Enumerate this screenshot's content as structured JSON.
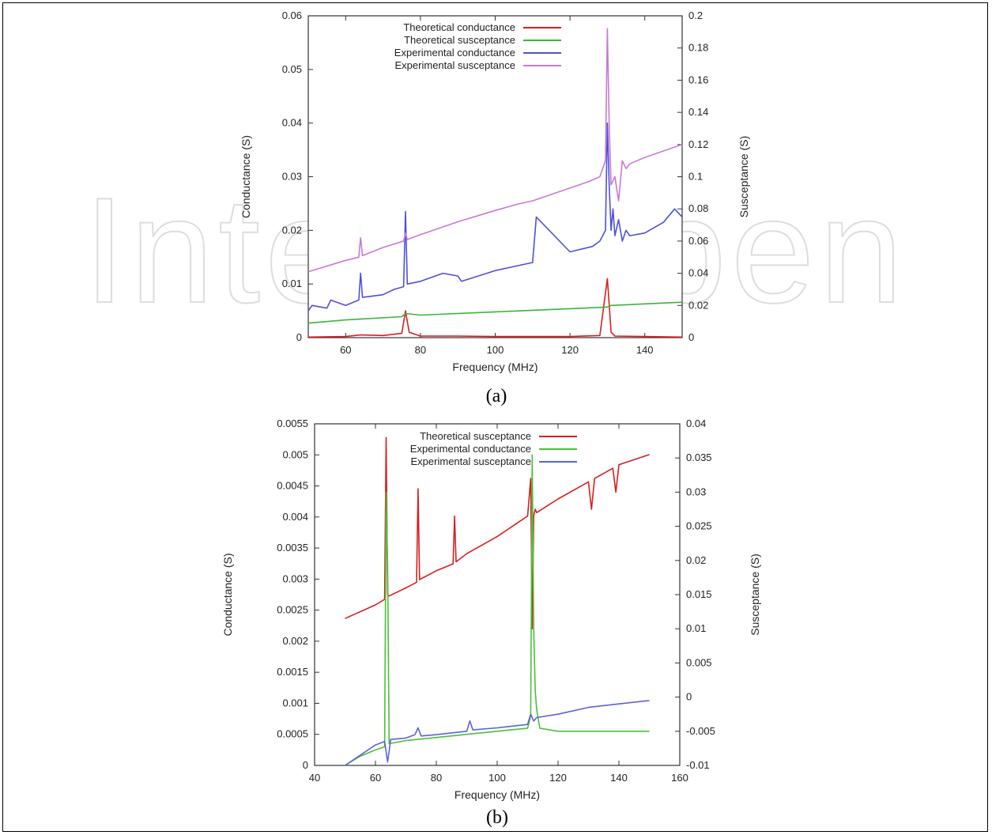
{
  "chart_data": [
    {
      "type": "line",
      "panel_label": "(a)",
      "xlabel": "Frequency (MHz)",
      "ylabel": "Conductance (S)",
      "y2label": "Susceptance (S)",
      "xlim": [
        50,
        150
      ],
      "ylim": [
        0,
        0.06
      ],
      "y2lim": [
        0,
        0.2
      ],
      "xticks": [
        60,
        80,
        100,
        120,
        140
      ],
      "yticks": [
        0,
        0.01,
        0.02,
        0.03,
        0.04,
        0.05,
        0.06
      ],
      "y2ticks": [
        0,
        0.02,
        0.04,
        0.06,
        0.08,
        0.1,
        0.12,
        0.14,
        0.16,
        0.18,
        0.2
      ],
      "legend_position": "top-center",
      "series": [
        {
          "name": "Theoretical conductance",
          "color": "#d62020",
          "axis": "left",
          "x": [
            50,
            60,
            64,
            70,
            75,
            76,
            77,
            80,
            90,
            100,
            110,
            120,
            128,
            130,
            130.5,
            131,
            132,
            140,
            150
          ],
          "y": [
            0.0001,
            0.0002,
            0.0005,
            0.0004,
            0.0008,
            0.005,
            0.001,
            0.0003,
            0.0003,
            0.0002,
            0.0002,
            0.0002,
            0.0004,
            0.011,
            0.006,
            0.001,
            0.0003,
            0.0002,
            0.0001
          ]
        },
        {
          "name": "Theoretical susceptance",
          "color": "#3cb43c",
          "axis": "right",
          "x": [
            50,
            60,
            75,
            76,
            80,
            100,
            120,
            130,
            131,
            140,
            150
          ],
          "y": [
            0.009,
            0.011,
            0.013,
            0.015,
            0.014,
            0.016,
            0.018,
            0.019,
            0.02,
            0.021,
            0.022
          ]
        },
        {
          "name": "Experimental conductance",
          "color": "#5050d8",
          "axis": "left",
          "x": [
            50,
            51,
            55,
            56,
            60,
            63.5,
            64,
            64.5,
            70,
            73,
            75.5,
            76,
            76.5,
            80,
            86,
            90,
            91,
            100,
            110,
            111,
            120,
            126,
            128,
            129.5,
            130,
            130.5,
            131,
            131.5,
            132,
            133,
            134,
            135,
            136,
            140,
            145,
            148,
            150
          ],
          "y": [
            0.005,
            0.006,
            0.0055,
            0.007,
            0.006,
            0.007,
            0.012,
            0.0075,
            0.008,
            0.009,
            0.0095,
            0.0235,
            0.01,
            0.0105,
            0.012,
            0.0115,
            0.0105,
            0.0125,
            0.014,
            0.0225,
            0.016,
            0.017,
            0.018,
            0.02,
            0.04,
            0.028,
            0.02,
            0.024,
            0.019,
            0.022,
            0.018,
            0.02,
            0.019,
            0.0195,
            0.0215,
            0.024,
            0.0225
          ]
        },
        {
          "name": "Experimental susceptance",
          "color": "#c67ad4",
          "axis": "right",
          "x": [
            50,
            60,
            63.5,
            64,
            64.5,
            70,
            75.5,
            76,
            76.5,
            80,
            90,
            100,
            106,
            110,
            120,
            125,
            128,
            129.5,
            130,
            130.5,
            131,
            132,
            133,
            134,
            135,
            136,
            140,
            150
          ],
          "y": [
            0.041,
            0.048,
            0.05,
            0.062,
            0.051,
            0.056,
            0.06,
            0.065,
            0.061,
            0.064,
            0.072,
            0.079,
            0.083,
            0.085,
            0.093,
            0.097,
            0.1,
            0.11,
            0.192,
            0.13,
            0.095,
            0.1,
            0.085,
            0.11,
            0.105,
            0.108,
            0.112,
            0.12
          ]
        }
      ]
    },
    {
      "type": "line",
      "panel_label": "(b)",
      "xlabel": "Frequency (MHz)",
      "ylabel": "Conductance (S)",
      "y2label": "Susceptance (S)",
      "xlim": [
        40,
        160
      ],
      "ylim": [
        0,
        0.0055
      ],
      "y2lim": [
        -0.01,
        0.04
      ],
      "xticks": [
        40,
        60,
        80,
        100,
        120,
        140,
        160
      ],
      "yticks": [
        0,
        0.0005,
        0.001,
        0.0015,
        0.002,
        0.0025,
        0.003,
        0.0035,
        0.004,
        0.0045,
        0.005,
        0.0055
      ],
      "y2ticks": [
        -0.01,
        -0.005,
        0,
        0.005,
        0.01,
        0.015,
        0.02,
        0.025,
        0.03,
        0.035,
        0.04
      ],
      "legend_position": "top-center",
      "series": [
        {
          "name": "Theoretical susceptance",
          "color": "#d62020",
          "axis": "right",
          "x": [
            50,
            60,
            63,
            63.5,
            64,
            64.5,
            70,
            73.5,
            74,
            74.5,
            80,
            85.5,
            86,
            86.5,
            90,
            100,
            105,
            110,
            111,
            111.5,
            112,
            112.5,
            113,
            120,
            130,
            131,
            132,
            138,
            139,
            140,
            150
          ],
          "y": [
            0.0115,
            0.0135,
            0.0143,
            0.038,
            0.015,
            0.0148,
            0.016,
            0.0168,
            0.0305,
            0.0172,
            0.0185,
            0.0195,
            0.0265,
            0.0198,
            0.021,
            0.0235,
            0.025,
            0.0265,
            0.032,
            0.01,
            0.0265,
            0.0275,
            0.027,
            0.029,
            0.0315,
            0.0275,
            0.032,
            0.0335,
            0.03,
            0.034,
            0.0355
          ]
        },
        {
          "name": "Experimental conductance",
          "color": "#4cbf3c",
          "axis": "left",
          "x": [
            50,
            55,
            60,
            63,
            63.5,
            64,
            64.5,
            70,
            80,
            90,
            100,
            110,
            111,
            111.5,
            112,
            112.5,
            113,
            114,
            120,
            130,
            140,
            150
          ],
          "y": [
            0,
            0.00015,
            0.00025,
            0.0003,
            0.0044,
            0.0032,
            0.00035,
            0.0004,
            0.00045,
            0.0005,
            0.00055,
            0.0006,
            0.0008,
            0.005,
            0.0022,
            0.0012,
            0.0009,
            0.0006,
            0.00055,
            0.00055,
            0.00055,
            0.00055
          ]
        },
        {
          "name": "Experimental susceptance",
          "color": "#5a64d8",
          "axis": "right",
          "x": [
            50,
            55,
            60,
            63,
            64,
            65,
            70,
            73,
            74,
            75,
            80,
            90,
            91,
            92,
            100,
            110,
            111,
            112,
            113,
            120,
            130,
            140,
            150
          ],
          "y": [
            -0.01,
            -0.0085,
            -0.007,
            -0.0065,
            -0.0095,
            -0.0062,
            -0.006,
            -0.0055,
            -0.0045,
            -0.0057,
            -0.0055,
            -0.005,
            -0.0035,
            -0.0048,
            -0.0045,
            -0.004,
            -0.0025,
            -0.0035,
            -0.003,
            -0.0025,
            -0.0015,
            -0.001,
            -0.0005
          ]
        }
      ]
    }
  ],
  "watermark": "IntechOpen"
}
